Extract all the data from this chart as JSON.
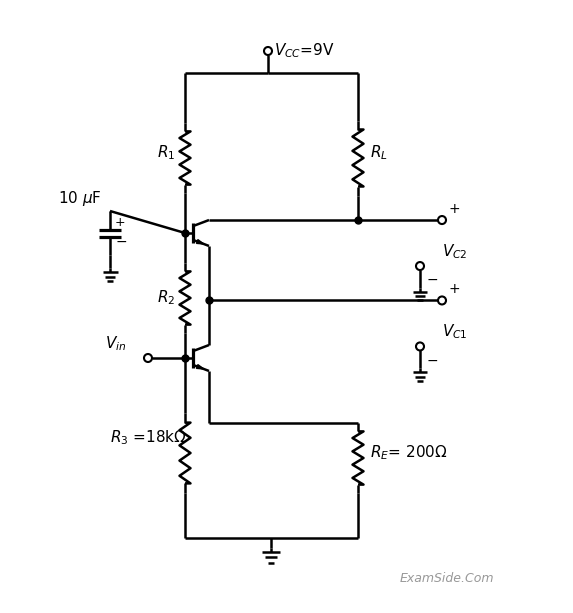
{
  "bg_color": "#ffffff",
  "line_color": "#000000",
  "text_color": "#000000",
  "gray_color": "#808080",
  "line_width": 1.8
}
